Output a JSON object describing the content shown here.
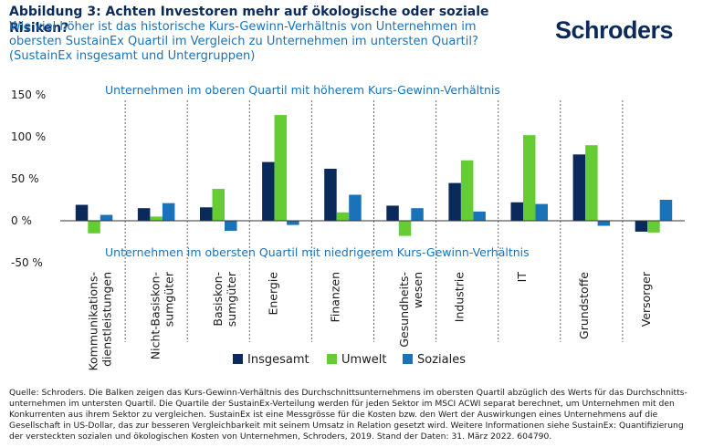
{
  "header": {
    "title": "Abbildung 3: Achten Investoren mehr auf ökologische oder soziale Risiken?",
    "subtitle": "Wie viel höher ist das historische Kurs-Gewinn-Verhältnis von Unternehmen im obersten SustainEx Quartil im Vergleich zu Unternehmen im untersten Quartil? (SustainEx insgesamt und Untergruppen)",
    "logo": "Schroders"
  },
  "footnote": "Quelle: Schroders. Die Balken zeigen das Kurs-Gewinn-Verhältnis des Durchschnittsunternehmens im obersten Quartil abzüglich des Werts für das Durchschnitts-unternehmen im untersten Quartil. Die Quartile der SustainEx-Verteilung werden für jeden Sektor im MSCI ACWI separat berechnet, um Unternehmen mit den Konkurrenten aus ihrem Sektor zu vergleichen. SustainEx ist eine Messgrösse für die Kosten bzw. den Wert der Auswirkungen eines Unternehmens auf die Gesellschaft in US-Dollar, das zur besseren Vergleichbarkeit mit seinem Umsatz in Relation gesetzt wird. Weitere Informationen siehe SustainEx: Quantifizierung der versteckten sozialen und ökologischen Kosten von Unternehmen, Schroders, 2019. Stand der Daten: 31. März 2022. 604790.",
  "chart_data": {
    "type": "bar",
    "categories": [
      [
        "Kommunikations-",
        "dienstleistungen"
      ],
      [
        "Nicht-Basiskon-",
        "sumgüter"
      ],
      [
        "Basiskon-",
        "sumgüter"
      ],
      [
        "Energie"
      ],
      [
        "Finanzen"
      ],
      [
        "Gesundheits-",
        "wesen"
      ],
      [
        "Industrie"
      ],
      [
        "IT"
      ],
      [
        "Grundstoffe"
      ],
      [
        "Versorger"
      ]
    ],
    "series": [
      {
        "name": "Insgesamt",
        "color": "#0b2a5c",
        "values": [
          19,
          15,
          16,
          70,
          62,
          18,
          45,
          22,
          79,
          -13
        ]
      },
      {
        "name": "Umwelt",
        "color": "#66cc33",
        "values": [
          -15,
          5,
          38,
          126,
          10,
          -18,
          72,
          102,
          90,
          -14
        ]
      },
      {
        "name": "Soziales",
        "color": "#1a72b8",
        "values": [
          7,
          21,
          -12,
          -5,
          31,
          15,
          11,
          20,
          -6,
          25
        ]
      }
    ],
    "yticks": [
      "150 %",
      "100 %",
      "50 %",
      "0 %",
      "-50 %"
    ],
    "ytick_values": [
      150,
      100,
      50,
      0,
      -50
    ],
    "ylim": [
      -50,
      150
    ],
    "annotations": {
      "top": "Unternehmen im oberen Quartil mit höherem Kurs-Gewinn-Verhältnis",
      "bottom": "Unternehmen im obersten Quartil mit niedrigerem Kurs-Gewinn-Verhältnis"
    },
    "legend_position": "bottom-center",
    "grid": false
  }
}
